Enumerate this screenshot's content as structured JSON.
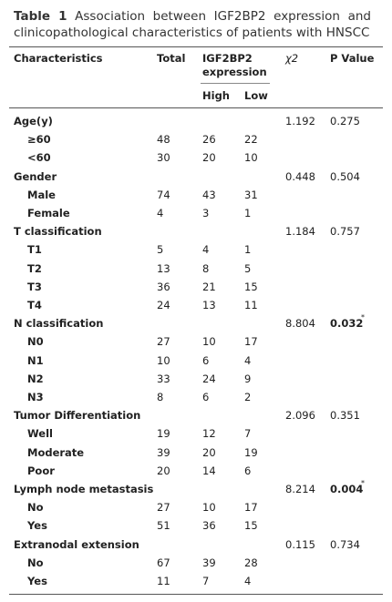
{
  "caption": {
    "label": "Table 1",
    "text": "Association between IGF2BP2 expression and clinicopathological characteristics of patients with HNSCC"
  },
  "table": {
    "header": {
      "characteristics": "Characteristics",
      "total": "Total",
      "expression": "IGF2BP2 expression",
      "chi2": "χ2",
      "p": "P Value",
      "high": "High",
      "low": "Low"
    },
    "groups": [
      {
        "label": "Age(y)",
        "chi2": "1.192",
        "p": "0.275",
        "rows": [
          {
            "label": "≥60",
            "total": "48",
            "high": "26",
            "low": "22"
          },
          {
            "label": "<60",
            "total": "30",
            "high": "20",
            "low": "10"
          }
        ]
      },
      {
        "label": "Gender",
        "chi2": "0.448",
        "p": "0.504",
        "rows": [
          {
            "label": "Male",
            "total": "74",
            "high": "43",
            "low": "31"
          },
          {
            "label": "Female",
            "total": "4",
            "high": "3",
            "low": "1"
          }
        ]
      },
      {
        "label": "T classification",
        "chi2": "1.184",
        "p": "0.757",
        "rows": [
          {
            "label": "T1",
            "total": "5",
            "high": "4",
            "low": "1"
          },
          {
            "label": "T2",
            "total": "13",
            "high": "8",
            "low": "5"
          },
          {
            "label": "T3",
            "total": "36",
            "high": "21",
            "low": "15"
          },
          {
            "label": "T4",
            "total": "24",
            "high": "13",
            "low": "11"
          }
        ]
      },
      {
        "label": "N classification",
        "chi2": "8.804",
        "p": "0.032",
        "p_mark": "*",
        "rows": [
          {
            "label": "N0",
            "total": "27",
            "high": "10",
            "low": "17"
          },
          {
            "label": "N1",
            "total": "10",
            "high": "6",
            "low": "4"
          },
          {
            "label": "N2",
            "total": "33",
            "high": "24",
            "low": "9"
          },
          {
            "label": "N3",
            "total": "8",
            "high": "6",
            "low": "2"
          }
        ]
      },
      {
        "label": "Tumor Differentiation",
        "chi2": "2.096",
        "p": "0.351",
        "rows": [
          {
            "label": "Well",
            "total": "19",
            "high": "12",
            "low": "7"
          },
          {
            "label": "Moderate",
            "total": "39",
            "high": "20",
            "low": "19"
          },
          {
            "label": "Poor",
            "total": "20",
            "high": "14",
            "low": "6"
          }
        ]
      },
      {
        "label": "Lymph node metastasis",
        "chi2": "8.214",
        "p": "0.004",
        "p_mark": "*",
        "rows": [
          {
            "label": "No",
            "total": "27",
            "high": "10",
            "low": "17"
          },
          {
            "label": "Yes",
            "total": "51",
            "high": "36",
            "low": "15"
          }
        ]
      },
      {
        "label": "Extranodal extension",
        "chi2": "0.115",
        "p": "0.734",
        "rows": [
          {
            "label": "No",
            "total": "67",
            "high": "39",
            "low": "28"
          },
          {
            "label": "Yes",
            "total": "11",
            "high": "7",
            "low": "4"
          }
        ]
      }
    ]
  }
}
